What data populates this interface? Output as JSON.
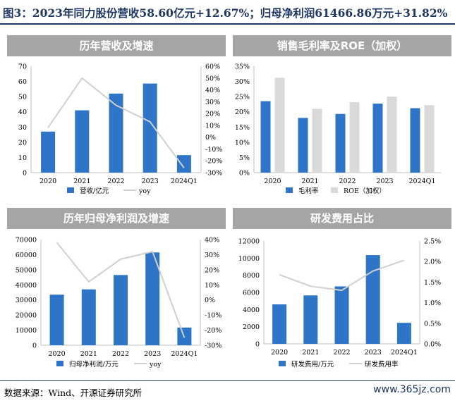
{
  "figure_title": "图3：2023年同力股份营收58.60亿元+12.67%；归母净利润61466.86万元+31.82%",
  "source": "数据来源：Wind、开源证券研究所",
  "watermark": "www.365jz.com",
  "colors": {
    "bar_blue": "#2e75c8",
    "bar_gray": "#d9d9d9",
    "line_gray": "#d0d0d0",
    "header_gray": "#a5a5a5",
    "navy": "#1f3864"
  },
  "chart_data": [
    {
      "type": "bar",
      "title": "历年营收及增速",
      "categories": [
        "2020",
        "2021",
        "2022",
        "2023",
        "2024Q1"
      ],
      "series": [
        {
          "name": "营收/亿元",
          "kind": "bar",
          "axis": "left",
          "values": [
            27,
            41,
            52,
            58.6,
            11.5
          ]
        },
        {
          "name": "yoy",
          "kind": "line",
          "axis": "right",
          "values": [
            0.08,
            0.5,
            0.27,
            0.13,
            -0.26
          ]
        }
      ],
      "y_left": {
        "min": 0,
        "max": 70,
        "ticks": [
          "0",
          "10",
          "20",
          "30",
          "40",
          "50",
          "60",
          "70"
        ]
      },
      "y_right": {
        "min": -0.3,
        "max": 0.6,
        "ticks": [
          "-30%",
          "-20%",
          "-10%",
          "0%",
          "10%",
          "20%",
          "30%",
          "40%",
          "50%",
          "60%"
        ]
      }
    },
    {
      "type": "bar",
      "title": "销售毛利率及ROE（加权）",
      "categories": [
        "2020",
        "2021",
        "2022",
        "2023",
        "2024Q1"
      ],
      "series": [
        {
          "name": "毛利率",
          "kind": "bar",
          "axis": "left",
          "values": [
            0.235,
            0.18,
            0.193,
            0.227,
            0.212
          ]
        },
        {
          "name": "ROE（加权）",
          "kind": "bar2",
          "axis": "left",
          "values": [
            0.312,
            0.21,
            0.232,
            0.25,
            0.222
          ]
        }
      ],
      "y_left": {
        "min": 0,
        "max": 0.35,
        "ticks": [
          "0%",
          "5%",
          "10%",
          "15%",
          "20%",
          "25%",
          "30%",
          "35%"
        ]
      }
    },
    {
      "type": "bar",
      "title": "历年归母净利润及增速",
      "categories": [
        "2020",
        "2021",
        "2022",
        "2023",
        "2024Q1"
      ],
      "series": [
        {
          "name": "归母净利润/万元",
          "kind": "bar",
          "axis": "left",
          "values": [
            33500,
            37000,
            46500,
            61466.86,
            11700
          ]
        },
        {
          "name": "yoy",
          "kind": "line",
          "axis": "right",
          "values": [
            0.38,
            0.12,
            0.27,
            0.32,
            -0.25
          ]
        }
      ],
      "y_left": {
        "min": 0,
        "max": 70000,
        "ticks": [
          "0",
          "10000",
          "20000",
          "30000",
          "40000",
          "50000",
          "60000",
          "70000"
        ]
      },
      "y_right": {
        "min": -0.3,
        "max": 0.4,
        "ticks": [
          "-30%",
          "-20%",
          "-10%",
          "0%",
          "10%",
          "20%",
          "30%",
          "40%"
        ]
      }
    },
    {
      "type": "bar",
      "title": "研发费用占比",
      "categories": [
        "2020",
        "2021",
        "2022",
        "2023",
        "2024Q1"
      ],
      "series": [
        {
          "name": "研发费用/万元",
          "kind": "bar",
          "axis": "left",
          "values": [
            4600,
            5650,
            6700,
            10350,
            2450
          ]
        },
        {
          "name": "研发费用率",
          "kind": "line",
          "axis": "right",
          "values": [
            0.0168,
            0.014,
            0.013,
            0.0177,
            0.0203
          ]
        }
      ],
      "y_left": {
        "min": 0,
        "max": 12000,
        "ticks": [
          "0",
          "2000",
          "4000",
          "6000",
          "8000",
          "10000",
          "12000"
        ]
      },
      "y_right": {
        "min": 0,
        "max": 0.025,
        "ticks": [
          "0.0%",
          "0.5%",
          "1.0%",
          "1.5%",
          "2.0%",
          "2.5%"
        ]
      }
    }
  ]
}
